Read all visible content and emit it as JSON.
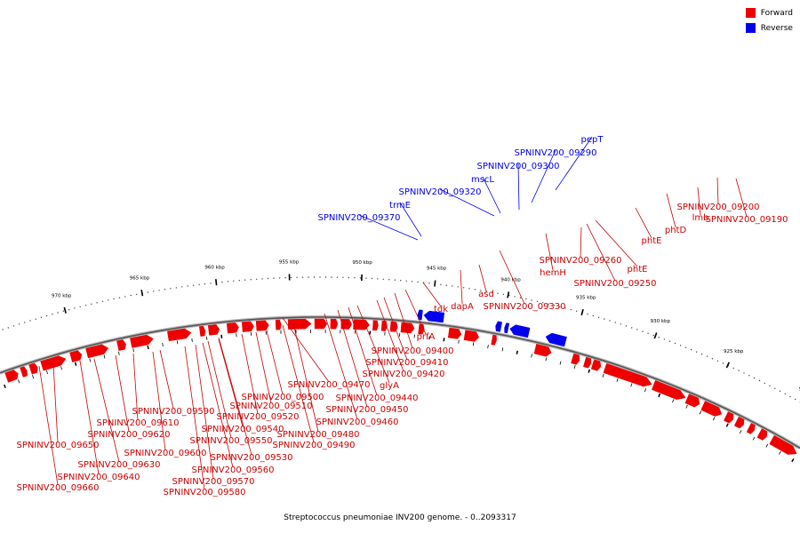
{
  "legend": {
    "forward_label": "Forward",
    "reverse_label": "Reverse"
  },
  "colors": {
    "forward": "#ee0000",
    "reverse": "#0000ee",
    "backbone": "#888888",
    "tick": "#000000"
  },
  "caption": "Streptococcus pneumoniae INV200 genome. - 0..2093317",
  "ticks": [
    {
      "label": "920 kbp"
    },
    {
      "label": "925 kbp"
    },
    {
      "label": "930 kbp"
    },
    {
      "label": "935 kbp"
    },
    {
      "label": "940 kbp"
    },
    {
      "label": "945 kbp"
    },
    {
      "label": "950 kbp"
    },
    {
      "label": "955 kbp"
    },
    {
      "label": "960 kbp"
    },
    {
      "label": "965 kbp"
    },
    {
      "label": "970 kbp"
    }
  ],
  "reverse_genes": [
    {
      "label": "pepT"
    },
    {
      "label": "SPNINV200_09290"
    },
    {
      "label": "SPNINV200_09300"
    },
    {
      "label": "mscL"
    },
    {
      "label": "SPNINV200_09320"
    },
    {
      "label": "trmE"
    },
    {
      "label": "SPNINV200_09370"
    }
  ],
  "forward_genes": [
    {
      "label": "SPNINV200_09190"
    },
    {
      "label": "SPNINV200_09200"
    },
    {
      "label": "lmb"
    },
    {
      "label": "phtD"
    },
    {
      "label": "phtE"
    },
    {
      "label": "phtE"
    },
    {
      "label": "SPNINV200_09250"
    },
    {
      "label": "SPNINV200_09260"
    },
    {
      "label": "hemH"
    },
    {
      "label": "SPNINV200_09330"
    },
    {
      "label": "asd"
    },
    {
      "label": "dapA"
    },
    {
      "label": "tdk"
    },
    {
      "label": "prfA"
    },
    {
      "label": "SPNINV200_09400"
    },
    {
      "label": "SPNINV200_09410"
    },
    {
      "label": "SPNINV200_09420"
    },
    {
      "label": "glyA"
    },
    {
      "label": "SPNINV200_09440"
    },
    {
      "label": "SPNINV200_09450"
    },
    {
      "label": "SPNINV200_09460"
    },
    {
      "label": "SPNINV200_09470"
    },
    {
      "label": "SPNINV200_09480"
    },
    {
      "label": "SPNINV200_09490"
    },
    {
      "label": "SPNINV200_09500"
    },
    {
      "label": "SPNINV200_09510"
    },
    {
      "label": "SPNINV200_09520"
    },
    {
      "label": "SPNINV200_09530"
    },
    {
      "label": "SPNINV200_09540"
    },
    {
      "label": "SPNINV200_09550"
    },
    {
      "label": "SPNINV200_09560"
    },
    {
      "label": "SPNINV200_09570"
    },
    {
      "label": "SPNINV200_09580"
    },
    {
      "label": "SPNINV200_09590"
    },
    {
      "label": "SPNINV200_09600"
    },
    {
      "label": "SPNINV200_09610"
    },
    {
      "label": "SPNINV200_09620"
    },
    {
      "label": "SPNINV200_09630"
    },
    {
      "label": "SPNINV200_09640"
    },
    {
      "label": "SPNINV200_09650"
    },
    {
      "label": "SPNINV200_09660"
    }
  ]
}
